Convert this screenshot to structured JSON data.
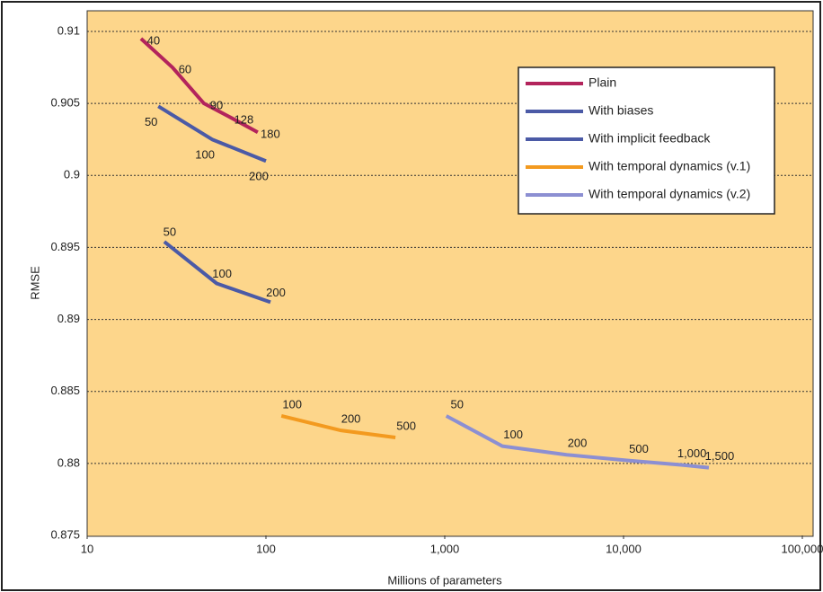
{
  "chart_data": {
    "type": "line",
    "xlabel": "Millions of parameters",
    "ylabel": "RMSE",
    "xscale": "log",
    "grid": true,
    "legend": "upper right",
    "xlim": [
      10,
      100000
    ],
    "xticks": [
      10,
      100,
      {
        "value": 1000,
        "label": "1,000"
      },
      {
        "value": 10000,
        "label": "10,000"
      },
      {
        "value": 100000,
        "label": "100,000"
      }
    ],
    "ylim": [
      0.875,
      0.91
    ],
    "yticks": [
      0.875,
      0.88,
      0.885,
      0.89,
      0.895,
      0.9,
      0.905,
      0.91
    ],
    "series": [
      {
        "name": "Plain",
        "color": "#b3245c",
        "x": [
          20,
          30,
          45,
          64,
          90
        ],
        "values": [
          0.9095,
          0.9075,
          0.905,
          0.904,
          0.903
        ],
        "point_labels": [
          "40",
          "60",
          "90",
          "128",
          "180"
        ]
      },
      {
        "name": "With biases",
        "color": "#4b5aa6",
        "x": [
          25,
          50,
          100
        ],
        "values": [
          0.9048,
          0.9025,
          0.901
        ],
        "point_labels": [
          "50",
          "100",
          "200"
        ]
      },
      {
        "name": "With implicit feedback",
        "color": "#4b5aa6",
        "x": [
          27,
          53,
          106
        ],
        "values": [
          0.8954,
          0.8925,
          0.8912
        ],
        "point_labels": [
          "50",
          "100",
          "200"
        ]
      },
      {
        "name": "With temporal dynamics (v.1)",
        "color": "#f39a1f",
        "x": [
          122,
          260,
          530
        ],
        "values": [
          0.8833,
          0.8823,
          0.8818
        ],
        "point_labels": [
          "100",
          "200",
          "500"
        ]
      },
      {
        "name": "With temporal dynamics (v.2)",
        "color": "#8c8fd2",
        "x": [
          1020,
          2100,
          4800,
          10600,
          21000,
          30000
        ],
        "values": [
          0.8833,
          0.8812,
          0.8806,
          0.8802,
          0.8799,
          0.8797
        ],
        "point_labels": [
          "50",
          "100",
          "200",
          "500",
          "1,000",
          "1,500"
        ]
      }
    ]
  }
}
